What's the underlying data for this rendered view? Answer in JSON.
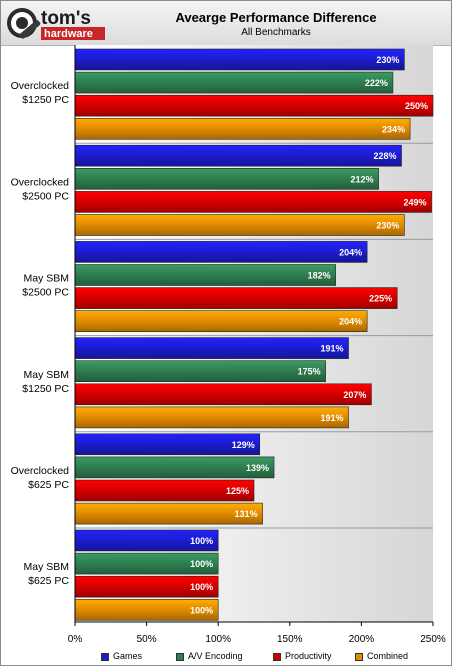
{
  "brand": {
    "name": "tom's",
    "sub": "hardware"
  },
  "chart_data": {
    "type": "bar",
    "orientation": "horizontal",
    "title": "Avearge Performance Difference",
    "subtitle": "All Benchmarks",
    "categories": [
      [
        "Overclocked",
        "$1250 PC"
      ],
      [
        "Overclocked",
        "$2500 PC"
      ],
      [
        "May SBM",
        "$2500 PC"
      ],
      [
        "May SBM",
        "$1250 PC"
      ],
      [
        "Overclocked",
        "$625 PC"
      ],
      [
        "May SBM",
        "$625 PC"
      ]
    ],
    "series": [
      {
        "name": "Games",
        "color": "#1c1ccc",
        "values": [
          230,
          228,
          204,
          191,
          129,
          100
        ],
        "labels": [
          "230%",
          "228%",
          "204%",
          "191%",
          "129%",
          "100%"
        ]
      },
      {
        "name": "A/V Encoding",
        "color": "#2e7d4f",
        "values": [
          222,
          212,
          182,
          175,
          139,
          100
        ],
        "labels": [
          "222%",
          "212%",
          "182%",
          "175%",
          "139%",
          "100%"
        ]
      },
      {
        "name": "Productivity",
        "color": "#d40000",
        "values": [
          250,
          249,
          225,
          207,
          125,
          100
        ],
        "labels": [
          "250%",
          "249%",
          "225%",
          "207%",
          "125%",
          "100%"
        ]
      },
      {
        "name": "Combined",
        "color": "#e08a00",
        "values": [
          234,
          230,
          204,
          191,
          131,
          100
        ],
        "labels": [
          "234%",
          "230%",
          "204%",
          "191%",
          "131%",
          "100%"
        ]
      }
    ],
    "xlim": [
      0,
      250
    ],
    "xticks": [
      0,
      50,
      100,
      150,
      200,
      250
    ],
    "xtick_labels": [
      "0%",
      "50%",
      "100%",
      "150%",
      "200%",
      "250%"
    ],
    "grid": false,
    "legend_position": "bottom"
  }
}
